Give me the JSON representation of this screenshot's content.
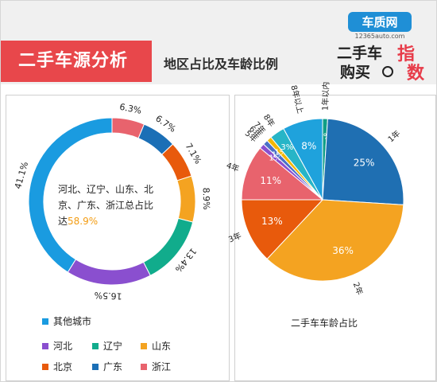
{
  "header": {
    "title": "二手车源分析",
    "subtitle": "地区占比及车龄比例",
    "logo": {
      "brand": "车质网",
      "site": "12365auto.com",
      "line1": "二手车",
      "line2": "购买",
      "tag1": "指",
      "tag2": "数"
    }
  },
  "colors": {
    "header_red": "#e8474b",
    "logo_blue": "#1f8fd6",
    "logo_red": "#e73b49"
  },
  "center_text": {
    "line1": "河北、辽宁、山东、北",
    "line2": "京、广东、浙江总占比",
    "line3_prefix": "达",
    "highlight": "58.9%"
  },
  "chart_data": [
    {
      "type": "pie",
      "variant": "donut",
      "slices": [
        {
          "label": "浙江",
          "value": 6.3,
          "display": "6.3%",
          "color": "#e8636d"
        },
        {
          "label": "广东",
          "value": 6.7,
          "display": "6.7%",
          "color": "#1b6fb6"
        },
        {
          "label": "北京",
          "value": 7.1,
          "display": "7.1%",
          "color": "#e85a0c"
        },
        {
          "label": "山东",
          "value": 8.9,
          "display": "8.9%",
          "color": "#f4a321"
        },
        {
          "label": "辽宁",
          "value": 13.4,
          "display": "13.4%",
          "color": "#11ac8c"
        },
        {
          "label": "河北",
          "value": 16.5,
          "display": "16.5%",
          "color": "#8a4fcf"
        },
        {
          "label": "其他城市",
          "value": 41.1,
          "display": "41.1%",
          "color": "#1a9be0"
        }
      ],
      "legend": {
        "placement": "bottom",
        "rows": [
          [
            "其他城市"
          ],
          [
            "河北",
            "辽宁",
            "山东"
          ],
          [
            "北京",
            "广东",
            "浙江"
          ]
        ]
      }
    },
    {
      "type": "pie",
      "caption": "二手车车龄占比",
      "slices": [
        {
          "label": "1年以内",
          "value": 1,
          "display": "1%",
          "color": "#0f9e86"
        },
        {
          "label": "1年",
          "value": 25,
          "display": "25%",
          "color": "#1f6fb2"
        },
        {
          "label": "2年",
          "value": 36,
          "display": "36%",
          "color": "#f4a321"
        },
        {
          "label": "3年",
          "value": 13,
          "display": "13%",
          "color": "#e85a0c"
        },
        {
          "label": "4年",
          "value": 11,
          "display": "11%",
          "color": "#e8636d"
        },
        {
          "label": "5年",
          "value": 1,
          "display": "1%",
          "color": "#8a4fcf"
        },
        {
          "label": "6年",
          "value": 1,
          "display": "1%",
          "color": "#4a70c7"
        },
        {
          "label": "7年",
          "value": 1,
          "display": "1%",
          "color": "#f2b705"
        },
        {
          "label": "8年",
          "value": 3,
          "display": "3%",
          "color": "#27b5c7"
        },
        {
          "label": "8年以上",
          "value": 8,
          "display": "8%",
          "color": "#1fa2dc"
        }
      ]
    }
  ]
}
